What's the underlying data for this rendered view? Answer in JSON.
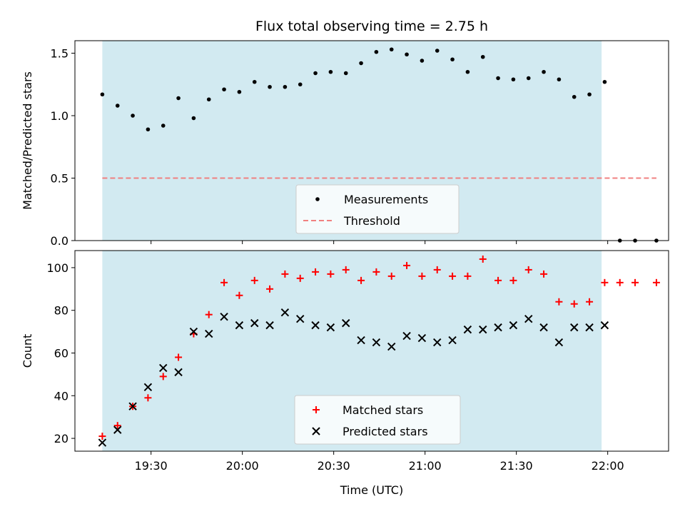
{
  "chart_data": [
    {
      "type": "scatter",
      "title": "Flux total observing time = 2.75 h",
      "xlabel": "",
      "ylabel": "Matched/Predicted stars",
      "ylim": [
        0,
        1.6
      ],
      "yticks": [
        0.0,
        0.5,
        1.0,
        1.5
      ],
      "ytick_labels": [
        "0.0",
        "0.5",
        "1.0",
        "1.5"
      ],
      "xlim": [
        "19:05",
        "22:20"
      ],
      "shaded_span": [
        "19:14",
        "21:58"
      ],
      "shade_color": "#add8e6",
      "legend_position": "lower center",
      "series": [
        {
          "name": "Measurements",
          "style": "dot",
          "color": "#000000",
          "x": [
            "19:14",
            "19:19",
            "19:24",
            "19:29",
            "19:34",
            "19:39",
            "19:44",
            "19:49",
            "19:54",
            "19:59",
            "20:04",
            "20:09",
            "20:14",
            "20:19",
            "20:24",
            "20:29",
            "20:34",
            "20:39",
            "20:44",
            "20:49",
            "20:54",
            "20:59",
            "21:04",
            "21:09",
            "21:14",
            "21:19",
            "21:24",
            "21:29",
            "21:34",
            "21:39",
            "21:44",
            "21:49",
            "21:54",
            "21:59",
            "22:04",
            "22:09",
            "22:16"
          ],
          "y": [
            1.17,
            1.08,
            1.0,
            0.89,
            0.92,
            1.14,
            0.98,
            1.13,
            1.21,
            1.19,
            1.27,
            1.23,
            1.23,
            1.25,
            1.34,
            1.35,
            1.34,
            1.42,
            1.51,
            1.53,
            1.49,
            1.44,
            1.52,
            1.45,
            1.35,
            1.47,
            1.3,
            1.29,
            1.3,
            1.35,
            1.29,
            1.15,
            1.17,
            1.27,
            0.0,
            0.0,
            0.0
          ]
        },
        {
          "name": "Threshold",
          "style": "dashed",
          "color": "#f08080",
          "x": [
            "19:14",
            "22:16"
          ],
          "y": [
            0.5,
            0.5
          ]
        }
      ]
    },
    {
      "type": "scatter",
      "title": "",
      "xlabel": "Time (UTC)",
      "ylabel": "Count",
      "ylim": [
        14,
        108
      ],
      "yticks": [
        20,
        40,
        60,
        80,
        100
      ],
      "ytick_labels": [
        "20",
        "40",
        "60",
        "80",
        "100"
      ],
      "xlim": [
        "19:05",
        "22:20"
      ],
      "xticks": [
        "19:30",
        "20:00",
        "20:30",
        "21:00",
        "21:30",
        "22:00"
      ],
      "shaded_span": [
        "19:14",
        "21:58"
      ],
      "shade_color": "#add8e6",
      "legend_position": "lower center",
      "series": [
        {
          "name": "Matched stars",
          "style": "plus",
          "color": "#ff0000",
          "x": [
            "19:14",
            "19:19",
            "19:24",
            "19:29",
            "19:34",
            "19:39",
            "19:44",
            "19:49",
            "19:54",
            "19:59",
            "20:04",
            "20:09",
            "20:14",
            "20:19",
            "20:24",
            "20:29",
            "20:34",
            "20:39",
            "20:44",
            "20:49",
            "20:54",
            "20:59",
            "21:04",
            "21:09",
            "21:14",
            "21:19",
            "21:24",
            "21:29",
            "21:34",
            "21:39",
            "21:44",
            "21:49",
            "21:54",
            "21:59",
            "22:04",
            "22:09",
            "22:16"
          ],
          "y": [
            21,
            26,
            35,
            39,
            49,
            58,
            69,
            78,
            93,
            87,
            94,
            90,
            97,
            95,
            98,
            97,
            99,
            94,
            98,
            96,
            101,
            96,
            99,
            96,
            96,
            104,
            94,
            94,
            99,
            97,
            84,
            83,
            84,
            93,
            93,
            93,
            93
          ]
        },
        {
          "name": "Predicted stars",
          "style": "x",
          "color": "#000000",
          "x": [
            "19:14",
            "19:19",
            "19:24",
            "19:29",
            "19:34",
            "19:39",
            "19:44",
            "19:49",
            "19:54",
            "19:59",
            "20:04",
            "20:09",
            "20:14",
            "20:19",
            "20:24",
            "20:29",
            "20:34",
            "20:39",
            "20:44",
            "20:49",
            "20:54",
            "20:59",
            "21:04",
            "21:09",
            "21:14",
            "21:19",
            "21:24",
            "21:29",
            "21:34",
            "21:39",
            "21:44",
            "21:49",
            "21:54",
            "21:59"
          ],
          "y": [
            18,
            24,
            35,
            44,
            53,
            51,
            70,
            69,
            77,
            73,
            74,
            73,
            79,
            76,
            73,
            72,
            74,
            66,
            65,
            63,
            68,
            67,
            65,
            66,
            71,
            71,
            72,
            73,
            76,
            72,
            65,
            72,
            72,
            73
          ]
        }
      ]
    }
  ]
}
